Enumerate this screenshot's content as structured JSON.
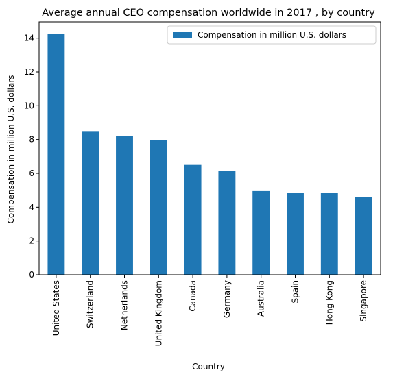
{
  "chart_data": {
    "type": "bar",
    "title": "Average annual CEO compensation worldwide in 2017 , by country",
    "xlabel": "Country",
    "ylabel": "Compensation in million U.S. dollars",
    "categories": [
      "United States",
      "Switzerland",
      "Netherlands",
      "United Kingdom",
      "Canada",
      "Germany",
      "Australia",
      "Spain",
      "Hong Kong",
      "Singapore"
    ],
    "series": [
      {
        "name": "Compensation in million U.S. dollars",
        "values": [
          14.25,
          8.5,
          8.2,
          7.95,
          6.5,
          6.15,
          4.95,
          4.85,
          4.85,
          4.6
        ],
        "color": "#1f77b4"
      }
    ],
    "ylim": [
      0,
      14.96
    ],
    "yticks": [
      0,
      2,
      4,
      6,
      8,
      10,
      12,
      14
    ],
    "ytick_labels": [
      "0",
      "2",
      "4",
      "6",
      "8",
      "10",
      "12",
      "14"
    ],
    "grid": false,
    "legend_position": "top-right"
  }
}
